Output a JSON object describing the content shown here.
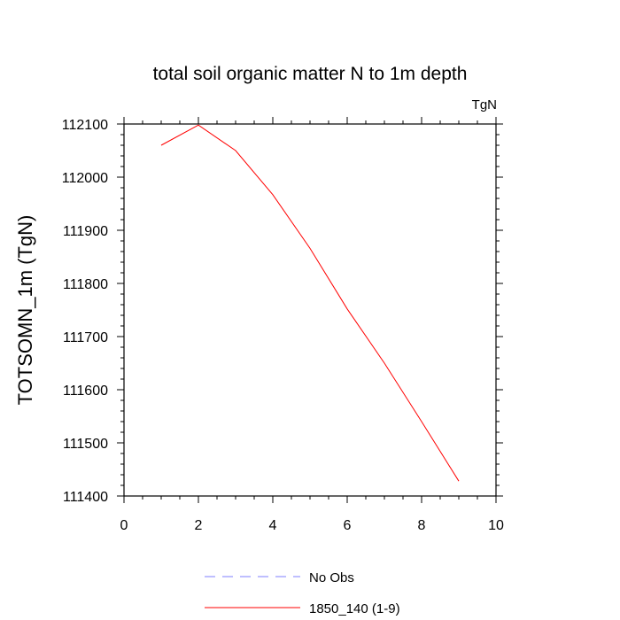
{
  "chart_data": {
    "type": "line",
    "title": "total soil organic matter N to 1m depth",
    "units_label": "TgN",
    "xlabel": "",
    "ylabel": "TOTSOMN_1m  (TgN)",
    "xlim": [
      0,
      10
    ],
    "ylim": [
      111400,
      112100
    ],
    "x_ticks": [
      0,
      2,
      4,
      6,
      8,
      10
    ],
    "y_ticks": [
      111400,
      111500,
      111600,
      111700,
      111800,
      111900,
      112000,
      112100
    ],
    "grid": false,
    "legend_position": "bottom",
    "series": [
      {
        "name": "No Obs",
        "color": "#7f7fff",
        "style": "dashed",
        "x": [],
        "y": []
      },
      {
        "name": "1850_140 (1-9)",
        "color": "#ff0000",
        "style": "solid",
        "x": [
          1,
          2,
          3,
          4,
          5,
          6,
          7,
          8,
          9
        ],
        "y": [
          112060,
          112098,
          112050,
          111967,
          111866,
          111752,
          111650,
          111540,
          111428
        ]
      }
    ]
  }
}
